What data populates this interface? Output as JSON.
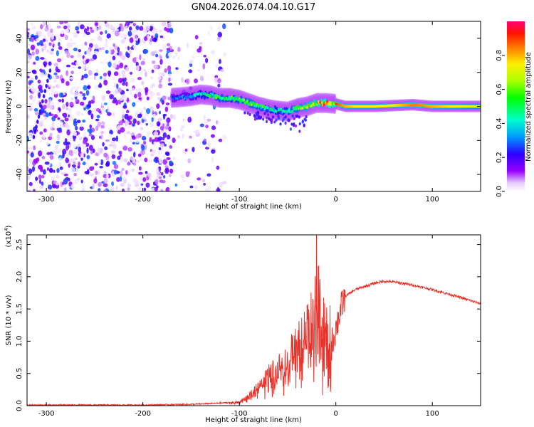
{
  "title": "GN04.2026.074.04.10.G17",
  "colors": {
    "snr_line": "#e8332a",
    "spectrogram_ridge": "#7a00ff"
  },
  "chart_data": [
    {
      "type": "heatmap",
      "name": "spectrogram",
      "title": "GN04.2026.074.04.10.G17",
      "xlabel": "Height of straight line (km)",
      "ylabel": "Frequency (Hz)",
      "xlim": [
        -320,
        150
      ],
      "ylim": [
        -50,
        50
      ],
      "xticks": [
        -300,
        -200,
        -100,
        0,
        100
      ],
      "xtick_labels": [
        "-300",
        "-200",
        "-100",
        "0",
        "100"
      ],
      "yticks": [
        -40,
        -20,
        0,
        20,
        40
      ],
      "ytick_labels": [
        "-40",
        "-20",
        "0",
        "20",
        "40"
      ],
      "colorbar": {
        "label": "Normalized spectral amplitude",
        "range": [
          0,
          1
        ],
        "ticks": [
          0.0,
          0.2,
          0.4,
          0.6,
          0.8
        ],
        "tick_labels": [
          "0.0",
          "0.2",
          "0.4",
          "0.6",
          "0.8"
        ]
      },
      "ridge": {
        "heights_km": [
          -170,
          -160,
          -150,
          -140,
          -130,
          -120,
          -110,
          -100,
          -90,
          -80,
          -70,
          -60,
          -50,
          -40,
          -30,
          -20,
          -10,
          0,
          10,
          20,
          40,
          60,
          80,
          100,
          120,
          150
        ],
        "freq_hz": [
          5,
          5.5,
          6,
          7,
          6.5,
          5,
          5,
          4,
          2,
          0,
          -1.5,
          -2.5,
          -3,
          -1,
          0,
          2,
          2,
          1.5,
          0,
          0,
          0,
          0.5,
          1,
          0,
          0,
          0
        ],
        "amplitude": [
          0.3,
          0.35,
          0.4,
          0.5,
          0.55,
          0.6,
          0.55,
          0.6,
          0.65,
          0.6,
          0.55,
          0.5,
          0.55,
          0.65,
          0.75,
          0.85,
          0.9,
          0.9,
          0.8,
          0.75,
          0.75,
          0.75,
          0.85,
          0.8,
          0.75,
          0.7
        ]
      },
      "noise_region_km": [
        -320,
        -115
      ]
    },
    {
      "type": "line",
      "name": "snr",
      "xlabel": "Height of straight line (km)",
      "ylabel": "SNR (10 * v/v)",
      "scale_label": "(x10",
      "scale_exponent": "4",
      "xlim": [
        -320,
        150
      ],
      "ylim": [
        0,
        2.65
      ],
      "xticks": [
        -300,
        -200,
        -100,
        0,
        100
      ],
      "xtick_labels": [
        "-300",
        "-200",
        "-100",
        "0",
        "100"
      ],
      "yticks": [
        0.0,
        0.5,
        1.0,
        1.5,
        2.0,
        2.5
      ],
      "ytick_labels": [
        "0.0",
        "0.5",
        "1.0",
        "1.5",
        "2.0",
        "2.5"
      ],
      "x": [
        -320,
        -250,
        -200,
        -150,
        -120,
        -100,
        -90,
        -80,
        -70,
        -60,
        -50,
        -40,
        -35,
        -30,
        -25,
        -20,
        -15,
        -10,
        -5,
        0,
        5,
        10,
        20,
        30,
        40,
        50,
        60,
        80,
        100,
        120,
        150
      ],
      "y": [
        0.01,
        0.01,
        0.01,
        0.02,
        0.04,
        0.06,
        0.15,
        0.3,
        0.45,
        0.55,
        0.65,
        0.8,
        0.9,
        1.0,
        1.15,
        1.3,
        1.2,
        1.0,
        0.9,
        1.2,
        1.5,
        1.7,
        1.8,
        1.85,
        1.9,
        1.93,
        1.92,
        1.87,
        1.8,
        1.72,
        1.58
      ],
      "max_spike": {
        "x": -20,
        "y": 2.65
      }
    }
  ]
}
